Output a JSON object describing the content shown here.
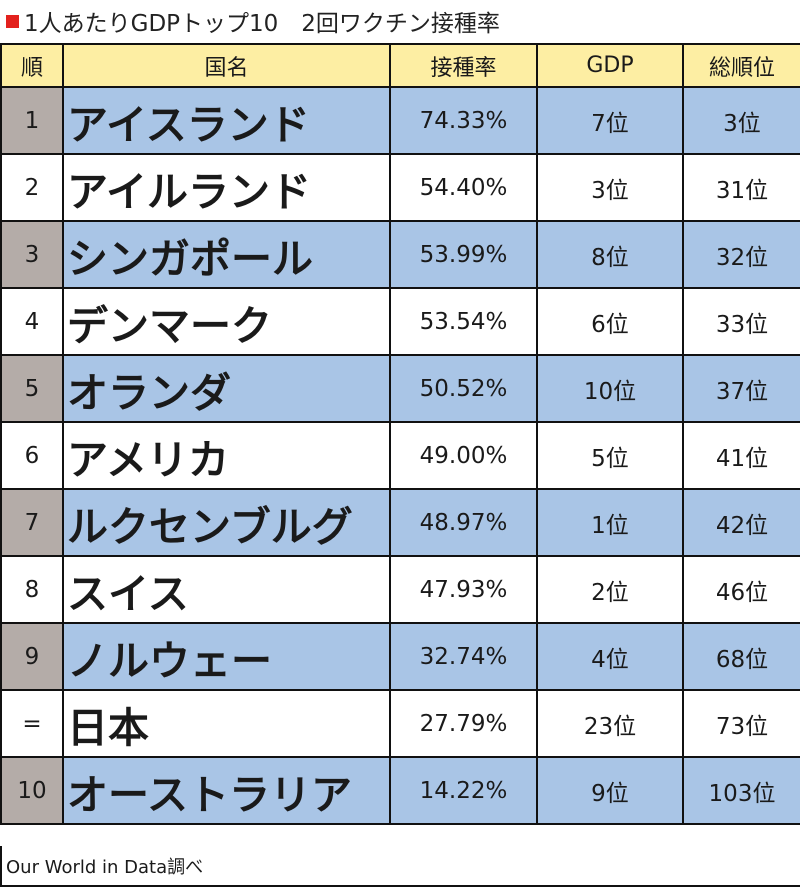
{
  "title": "1人あたりGDPトップ10　2回ワクチン接種率",
  "colors": {
    "title_mark": "#e3211d",
    "header_bg": "#fdeea3",
    "row_blue": "#a9c5e6",
    "rank_gray": "#b4aca8"
  },
  "headers": {
    "rank": "順",
    "country": "国名",
    "rate": "接種率",
    "gdp": "GDP",
    "total": "総順位"
  },
  "rows": [
    {
      "rank": "1",
      "country": "アイスランド",
      "rate": "74.33%",
      "gdp": "7位",
      "total": "3位"
    },
    {
      "rank": "2",
      "country": "アイルランド",
      "rate": "54.40%",
      "gdp": "3位",
      "total": "31位"
    },
    {
      "rank": "3",
      "country": "シンガポール",
      "rate": "53.99%",
      "gdp": "8位",
      "total": "32位"
    },
    {
      "rank": "4",
      "country": "デンマーク",
      "rate": "53.54%",
      "gdp": "6位",
      "total": "33位"
    },
    {
      "rank": "5",
      "country": "オランダ",
      "rate": "50.52%",
      "gdp": "10位",
      "total": "37位"
    },
    {
      "rank": "6",
      "country": "アメリカ",
      "rate": "49.00%",
      "gdp": "5位",
      "total": "41位"
    },
    {
      "rank": "7",
      "country": "ルクセンブルグ",
      "rate": "48.97%",
      "gdp": "1位",
      "total": "42位"
    },
    {
      "rank": "8",
      "country": "スイス",
      "rate": "47.93%",
      "gdp": "2位",
      "total": "46位"
    },
    {
      "rank": "9",
      "country": "ノルウェー",
      "rate": "32.74%",
      "gdp": "4位",
      "total": "68位"
    },
    {
      "rank": "=",
      "country": "日本",
      "rate": "27.79%",
      "gdp": "23位",
      "total": "73位"
    },
    {
      "rank": "10",
      "country": "オーストラリア",
      "rate": "14.22%",
      "gdp": "9位",
      "total": "103位"
    }
  ],
  "source": "Our World in Data調べ"
}
